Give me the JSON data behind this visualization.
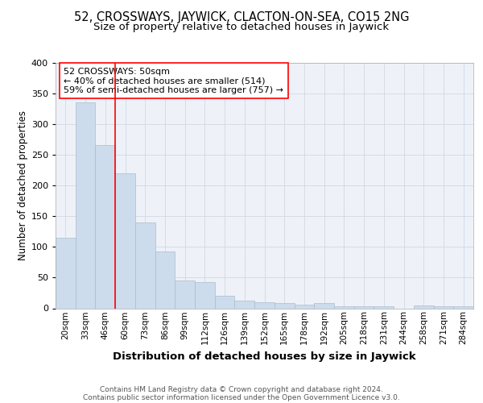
{
  "title": "52, CROSSWAYS, JAYWICK, CLACTON-ON-SEA, CO15 2NG",
  "subtitle": "Size of property relative to detached houses in Jaywick",
  "xlabel": "Distribution of detached houses by size in Jaywick",
  "ylabel": "Number of detached properties",
  "footer_line1": "Contains HM Land Registry data © Crown copyright and database right 2024.",
  "footer_line2": "Contains public sector information licensed under the Open Government Licence v3.0.",
  "annotation_line1": "52 CROSSWAYS: 50sqm",
  "annotation_line2": "← 40% of detached houses are smaller (514)",
  "annotation_line3": "59% of semi-detached houses are larger (757) →",
  "categories": [
    "20sqm",
    "33sqm",
    "46sqm",
    "60sqm",
    "73sqm",
    "86sqm",
    "99sqm",
    "112sqm",
    "126sqm",
    "139sqm",
    "152sqm",
    "165sqm",
    "178sqm",
    "192sqm",
    "205sqm",
    "218sqm",
    "231sqm",
    "244sqm",
    "258sqm",
    "271sqm",
    "284sqm"
  ],
  "values": [
    115,
    335,
    265,
    220,
    140,
    92,
    45,
    43,
    20,
    13,
    10,
    8,
    6,
    8,
    3,
    3,
    3,
    0,
    5,
    3,
    3
  ],
  "bar_color": "#ccdcec",
  "bar_edge_color": "#aabccc",
  "red_line_index": 2,
  "ylim": [
    0,
    400
  ],
  "yticks": [
    0,
    50,
    100,
    150,
    200,
    250,
    300,
    350,
    400
  ],
  "bg_color": "#eef2f8",
  "grid_color": "#d0d8e4",
  "title_fontsize": 10.5,
  "subtitle_fontsize": 9.5,
  "xlabel_fontsize": 9.5,
  "ylabel_fontsize": 8.5,
  "tick_fontsize": 7.5,
  "annotation_fontsize": 8,
  "footer_fontsize": 6.5
}
